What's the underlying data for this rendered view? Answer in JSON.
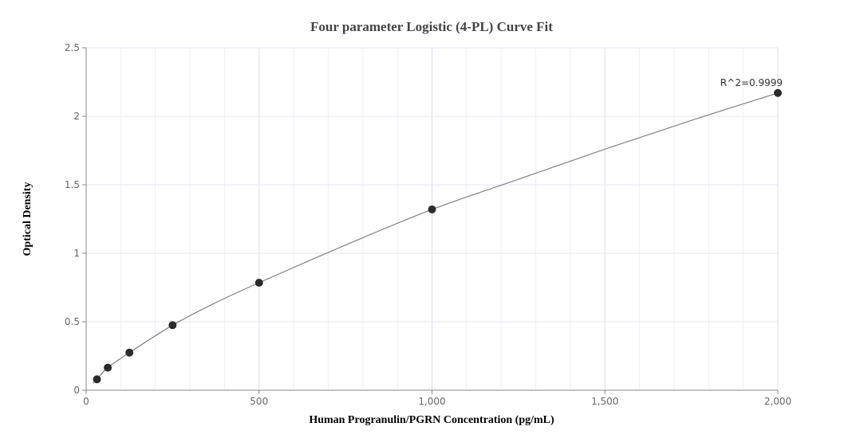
{
  "chart_data": {
    "type": "scatter",
    "title": "Four parameter Logistic (4-PL) Curve Fit",
    "xlabel": "Human Progranulin/PGRN Concentration (pg/mL)",
    "ylabel": "Optical Density",
    "xlim": [
      0,
      2000
    ],
    "ylim": [
      0,
      2.5
    ],
    "x_ticks": [
      0,
      500,
      1000,
      1500,
      2000
    ],
    "x_tick_labels": [
      "0",
      "500",
      "1,000",
      "1,500",
      "2,000"
    ],
    "y_ticks": [
      0,
      0.5,
      1,
      1.5,
      2,
      2.5
    ],
    "y_tick_labels": [
      "0",
      "0.5",
      "1",
      "1.5",
      "2",
      "2.5"
    ],
    "grid": true,
    "series": [
      {
        "type": "scatter",
        "x": [
          31.25,
          62.5,
          125,
          250,
          500,
          1000,
          2000
        ],
        "y": [
          0.08,
          0.165,
          0.275,
          0.475,
          0.785,
          1.32,
          2.17
        ]
      },
      {
        "type": "line",
        "x": [
          20,
          31.25,
          62.5,
          125,
          250,
          375,
          500,
          750,
          1000,
          1250,
          1500,
          1750,
          2000
        ],
        "y": [
          0.05,
          0.08,
          0.165,
          0.275,
          0.475,
          0.64,
          0.785,
          1.06,
          1.32,
          1.54,
          1.76,
          1.97,
          2.17
        ]
      }
    ],
    "annotations": [
      {
        "text": "R^2=0.9999",
        "x": 2000,
        "y": 2.17
      }
    ],
    "colors": {
      "marker": "#2b2b2b",
      "curve": "#808080",
      "grid": "#e6e6f2",
      "axis": "#888888"
    }
  }
}
